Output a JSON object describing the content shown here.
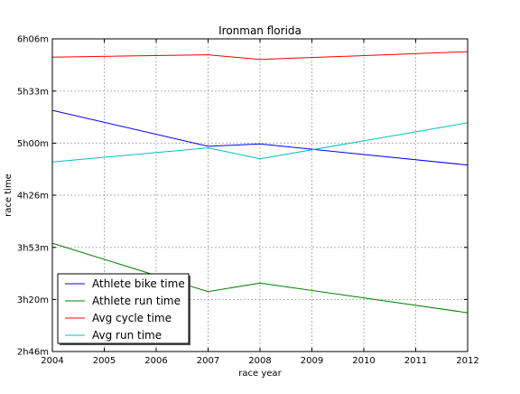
{
  "chart_data": {
    "type": "line",
    "title": "Ironman florida",
    "xlabel": "race year",
    "ylabel": "race time",
    "x": [
      2004,
      2007,
      2008,
      2012
    ],
    "x_ticks": [
      "2004",
      "2005",
      "2006",
      "2007",
      "2008",
      "2009",
      "2010",
      "2011",
      "2012"
    ],
    "x_tick_values": [
      2004,
      2005,
      2006,
      2007,
      2008,
      2009,
      2010,
      2011,
      2012
    ],
    "xlim": [
      2004,
      2012
    ],
    "y_unit": "minutes",
    "y_ticks": [
      "2h46m",
      "3h20m",
      "3h53m",
      "4h26m",
      "5h00m",
      "5h33m",
      "6h06m"
    ],
    "y_tick_values": [
      166.7,
      200,
      233.3,
      266.7,
      300,
      333.3,
      366.7
    ],
    "ylim": [
      166.7,
      366.7
    ],
    "grid": true,
    "legend_position": "lower-left",
    "series": [
      {
        "name": "Athlete bike time",
        "color": "#0000ff",
        "values": [
          321,
          298,
          299.5,
          286
        ]
      },
      {
        "name": "Athlete run time",
        "color": "#008000",
        "values": [
          236,
          205,
          210.5,
          191.5
        ]
      },
      {
        "name": "Avg cycle time",
        "color": "#ff0000",
        "values": [
          355,
          356.5,
          353.5,
          358.5
        ]
      },
      {
        "name": "Avg run time",
        "color": "#00bfbf",
        "values": [
          288,
          297,
          290,
          313
        ]
      }
    ]
  }
}
